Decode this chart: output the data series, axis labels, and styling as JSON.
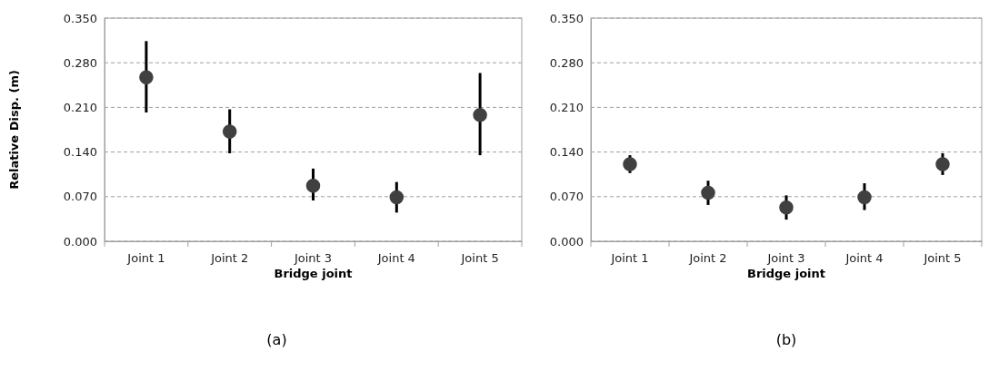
{
  "chart_data": [
    {
      "type": "scatter",
      "xlabel": "Bridge joint",
      "ylabel": "Relative Disp. (m)",
      "categories": [
        "Joint 1",
        "Joint 2",
        "Joint 3",
        "Joint 4",
        "Joint 5"
      ],
      "color": "#404040",
      "values": [
        0.257,
        0.172,
        0.087,
        0.069,
        0.198
      ],
      "errors": [
        [
          0.202,
          0.314
        ],
        [
          0.138,
          0.207
        ],
        [
          0.064,
          0.114
        ],
        [
          0.045,
          0.093
        ],
        [
          0.135,
          0.264
        ]
      ],
      "ylim": [
        0,
        0.35
      ],
      "yticks": [
        {
          "value": 0,
          "label": "0.000"
        },
        {
          "value": 0.07,
          "label": "0.070"
        },
        {
          "value": 0.14,
          "label": "0.140"
        },
        {
          "value": 0.21,
          "label": "0.210"
        },
        {
          "value": 0.28,
          "label": "0.280"
        },
        {
          "value": 0.35,
          "label": "0.350"
        }
      ],
      "grid": "y",
      "marker": "circle",
      "annotations": [
        "(a)"
      ]
    },
    {
      "type": "scatter",
      "xlabel": "Bridge joint",
      "categories": [
        "Joint 1",
        "Joint 2",
        "Joint 3",
        "Joint 4",
        "Joint 5"
      ],
      "color": "#404040",
      "values": [
        0.121,
        0.076,
        0.053,
        0.069,
        0.121
      ],
      "errors": [
        [
          0.107,
          0.135
        ],
        [
          0.057,
          0.095
        ],
        [
          0.034,
          0.072
        ],
        [
          0.049,
          0.091
        ],
        [
          0.104,
          0.138
        ]
      ],
      "ylim": [
        0,
        0.35
      ],
      "yticks": [
        {
          "value": 0,
          "label": "0.000"
        },
        {
          "value": 0.07,
          "label": "0.070"
        },
        {
          "value": 0.14,
          "label": "0.140"
        },
        {
          "value": 0.21,
          "label": "0.210"
        },
        {
          "value": 0.28,
          "label": "0.280"
        },
        {
          "value": 0.35,
          "label": "0.350"
        }
      ],
      "grid": "y",
      "marker": "circle",
      "annotations": [
        "(b)"
      ]
    }
  ]
}
